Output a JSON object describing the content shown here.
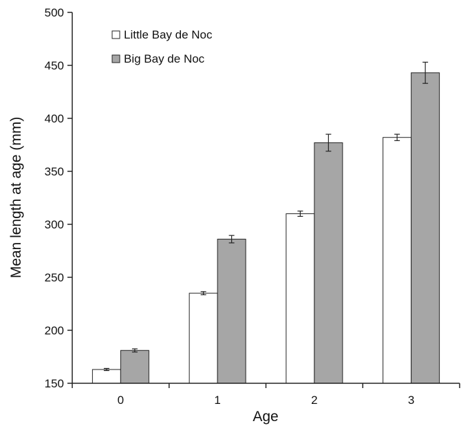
{
  "chart_data": {
    "type": "bar",
    "xlabel": "Age",
    "ylabel": "Mean length at age (mm)",
    "categories": [
      "0",
      "1",
      "2",
      "3"
    ],
    "ylim": [
      150,
      500
    ],
    "yticks": [
      "150",
      "200",
      "250",
      "300",
      "350",
      "400",
      "450",
      "500"
    ],
    "grid": false,
    "legend_position": "top-left",
    "series": [
      {
        "name": "Little Bay de Noc",
        "color": "#ffffff",
        "values": [
          163,
          235,
          310,
          382
        ],
        "error": [
          1,
          1.5,
          2.5,
          3
        ]
      },
      {
        "name": "Big Bay de Noc",
        "color": "#a6a6a6",
        "values": [
          181,
          286,
          377,
          443
        ],
        "error": [
          1.5,
          3.5,
          8,
          10
        ]
      }
    ]
  }
}
